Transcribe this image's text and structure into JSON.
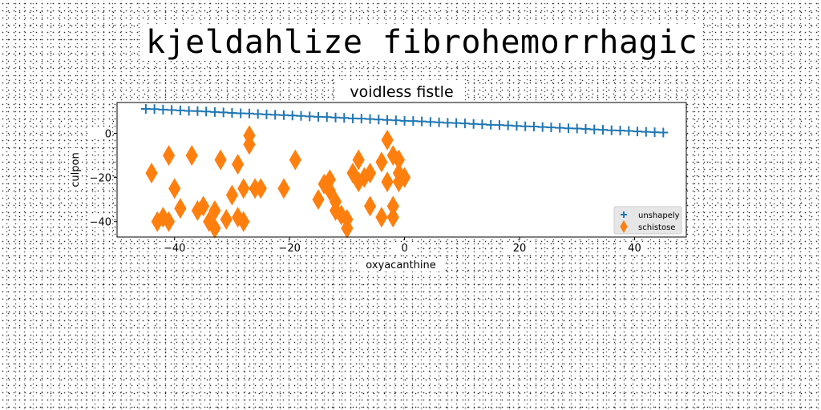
{
  "page": {
    "title": "kjeldahlize fibrohemorrhagic"
  },
  "chart_data": {
    "type": "scatter",
    "title": "voidless fistle",
    "xlabel": "oxyacanthine",
    "ylabel": "culpon",
    "xlim": [
      -50,
      49
    ],
    "ylim": [
      -47,
      14
    ],
    "xticks": [
      -40,
      -20,
      0,
      20,
      40
    ],
    "yticks": [
      0,
      -20,
      -40
    ],
    "grid": false,
    "legend": {
      "location": "lower-right",
      "entries": [
        "unshapely",
        "schistose"
      ]
    },
    "series": [
      {
        "name": "unshapely",
        "marker": "plus",
        "color": "#1f77b4",
        "x": [
          -45.0,
          -43.5,
          -42.0,
          -40.5,
          -39.0,
          -37.5,
          -36.0,
          -34.5,
          -33.0,
          -31.5,
          -30.0,
          -28.5,
          -27.0,
          -25.5,
          -24.0,
          -22.5,
          -21.0,
          -19.5,
          -18.0,
          -16.5,
          -15.0,
          -13.5,
          -12.0,
          -10.5,
          -9.0,
          -7.5,
          -6.0,
          -4.5,
          -3.0,
          -1.5,
          0.0,
          1.5,
          3.0,
          4.5,
          6.0,
          7.5,
          9.0,
          10.5,
          12.0,
          13.5,
          15.0,
          16.5,
          18.0,
          19.5,
          21.0,
          22.5,
          24.0,
          25.5,
          27.0,
          28.5,
          30.0,
          31.5,
          33.0,
          34.5,
          36.0,
          37.5,
          39.0,
          40.5,
          42.0,
          43.5,
          45.0
        ],
        "y": [
          11.1,
          11.0,
          10.8,
          10.6,
          10.4,
          10.2,
          10.1,
          9.9,
          9.7,
          9.5,
          9.3,
          9.1,
          9.0,
          8.8,
          8.6,
          8.4,
          8.3,
          8.1,
          7.9,
          7.7,
          7.5,
          7.4,
          7.2,
          7.0,
          6.8,
          6.7,
          6.5,
          6.3,
          6.1,
          5.9,
          5.7,
          5.6,
          5.4,
          5.2,
          5.0,
          4.8,
          4.7,
          4.5,
          4.3,
          4.1,
          3.9,
          3.8,
          3.6,
          3.4,
          3.2,
          3.1,
          2.9,
          2.7,
          2.5,
          2.3,
          2.2,
          2.0,
          1.8,
          1.6,
          1.4,
          1.3,
          1.1,
          0.9,
          0.7,
          0.5,
          0.4
        ]
      },
      {
        "name": "schistose",
        "marker": "diamond",
        "color": "#ff7f0e",
        "x": [
          -44,
          -43,
          -42,
          -41,
          -41,
          -40,
          -39,
          -37,
          -36,
          -35,
          -34,
          -33,
          -33,
          -32,
          -31,
          -30,
          -29,
          -29,
          -28,
          -28,
          -27,
          -27,
          -26,
          -25,
          -21,
          -19,
          -15,
          -14,
          -13,
          -13,
          -12,
          -12,
          -11,
          -10,
          -10,
          -9,
          -8,
          -8,
          -7,
          -6,
          -6,
          -4,
          -4,
          -3,
          -3,
          -2,
          -2,
          -2,
          -1,
          -1,
          -1,
          0
        ],
        "y": [
          -18,
          -40,
          -38,
          -10,
          -40,
          -25,
          -34,
          -10,
          -35,
          -33,
          -40,
          -43,
          -35,
          -12,
          -39,
          -28,
          -14,
          -38,
          -25,
          -40,
          -5,
          -1,
          -25,
          -25,
          -25,
          -12,
          -30,
          -23,
          -21,
          -26,
          -31,
          -35,
          -37,
          -39,
          -43,
          -18,
          -22,
          -12,
          -20,
          -18,
          -33,
          -38,
          -13,
          -3,
          -22,
          -33,
          -38,
          -10,
          -18,
          -12,
          -22,
          -20
        ]
      }
    ]
  }
}
